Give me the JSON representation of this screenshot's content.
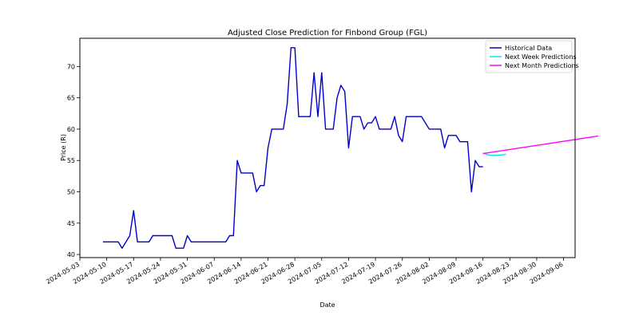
{
  "chart_data": {
    "type": "line",
    "title": "Adjusted Close Prediction for Finbond Group (FGL)",
    "xlabel": "Date",
    "ylabel": "Price (R)",
    "x_range": [
      "2024-05-03",
      "2024-09-09"
    ],
    "ylim": [
      39.5,
      74.5
    ],
    "x_ticks": [
      "2024-05-03",
      "2024-05-10",
      "2024-05-17",
      "2024-05-24",
      "2024-05-31",
      "2024-06-07",
      "2024-06-14",
      "2024-06-21",
      "2024-06-28",
      "2024-07-05",
      "2024-07-12",
      "2024-07-19",
      "2024-07-26",
      "2024-08-02",
      "2024-08-09",
      "2024-08-16",
      "2024-08-23",
      "2024-08-30",
      "2024-09-06"
    ],
    "y_ticks": [
      40,
      45,
      50,
      55,
      60,
      65,
      70
    ],
    "grid": false,
    "legend_position": "top-right",
    "series": [
      {
        "name": "Historical Data",
        "color": "#0000cc",
        "points": [
          [
            "2024-05-09",
            42
          ],
          [
            "2024-05-10",
            42
          ],
          [
            "2024-05-13",
            42
          ],
          [
            "2024-05-14",
            41
          ],
          [
            "2024-05-16",
            43
          ],
          [
            "2024-05-17",
            47
          ],
          [
            "2024-05-18",
            42
          ],
          [
            "2024-05-21",
            42
          ],
          [
            "2024-05-22",
            43
          ],
          [
            "2024-05-24",
            43
          ],
          [
            "2024-05-27",
            43
          ],
          [
            "2024-05-28",
            41
          ],
          [
            "2024-05-30",
            41
          ],
          [
            "2024-05-31",
            43
          ],
          [
            "2024-06-01",
            42
          ],
          [
            "2024-06-04",
            42
          ],
          [
            "2024-06-07",
            42
          ],
          [
            "2024-06-10",
            42
          ],
          [
            "2024-06-11",
            43
          ],
          [
            "2024-06-12",
            43
          ],
          [
            "2024-06-13",
            55
          ],
          [
            "2024-06-14",
            53
          ],
          [
            "2024-06-17",
            53
          ],
          [
            "2024-06-18",
            50
          ],
          [
            "2024-06-19",
            51
          ],
          [
            "2024-06-20",
            51
          ],
          [
            "2024-06-21",
            57
          ],
          [
            "2024-06-22",
            60
          ],
          [
            "2024-06-25",
            60
          ],
          [
            "2024-06-26",
            64
          ],
          [
            "2024-06-27",
            73
          ],
          [
            "2024-06-28",
            73
          ],
          [
            "2024-06-29",
            62
          ],
          [
            "2024-07-02",
            62
          ],
          [
            "2024-07-03",
            69
          ],
          [
            "2024-07-04",
            62
          ],
          [
            "2024-07-05",
            69
          ],
          [
            "2024-07-06",
            60
          ],
          [
            "2024-07-08",
            60
          ],
          [
            "2024-07-09",
            65
          ],
          [
            "2024-07-10",
            67
          ],
          [
            "2024-07-11",
            66
          ],
          [
            "2024-07-12",
            57
          ],
          [
            "2024-07-13",
            62
          ],
          [
            "2024-07-15",
            62
          ],
          [
            "2024-07-16",
            60
          ],
          [
            "2024-07-17",
            61
          ],
          [
            "2024-07-18",
            61
          ],
          [
            "2024-07-19",
            62
          ],
          [
            "2024-07-20",
            60
          ],
          [
            "2024-07-23",
            60
          ],
          [
            "2024-07-24",
            62
          ],
          [
            "2024-07-25",
            59
          ],
          [
            "2024-07-26",
            58
          ],
          [
            "2024-07-27",
            62
          ],
          [
            "2024-07-31",
            62
          ],
          [
            "2024-08-02",
            60
          ],
          [
            "2024-08-05",
            60
          ],
          [
            "2024-08-06",
            57
          ],
          [
            "2024-08-07",
            59
          ],
          [
            "2024-08-09",
            59
          ],
          [
            "2024-08-10",
            58
          ],
          [
            "2024-08-12",
            58
          ],
          [
            "2024-08-13",
            50
          ],
          [
            "2024-08-14",
            55
          ],
          [
            "2024-08-15",
            54
          ],
          [
            "2024-08-16",
            54
          ]
        ]
      },
      {
        "name": "Next Week Predictions",
        "color": "#00e5ff",
        "points": [
          [
            "2024-08-16",
            56.2
          ],
          [
            "2024-08-17",
            55.95
          ],
          [
            "2024-08-18",
            55.85
          ],
          [
            "2024-08-19",
            55.8
          ],
          [
            "2024-08-20",
            55.85
          ],
          [
            "2024-08-21",
            55.9
          ],
          [
            "2024-08-22",
            56.0
          ]
        ]
      },
      {
        "name": "Next Month Predictions",
        "color": "#ff00ff",
        "points": [
          [
            "2024-08-16",
            56.1
          ],
          [
            "2024-09-15",
            58.9
          ]
        ]
      }
    ]
  }
}
